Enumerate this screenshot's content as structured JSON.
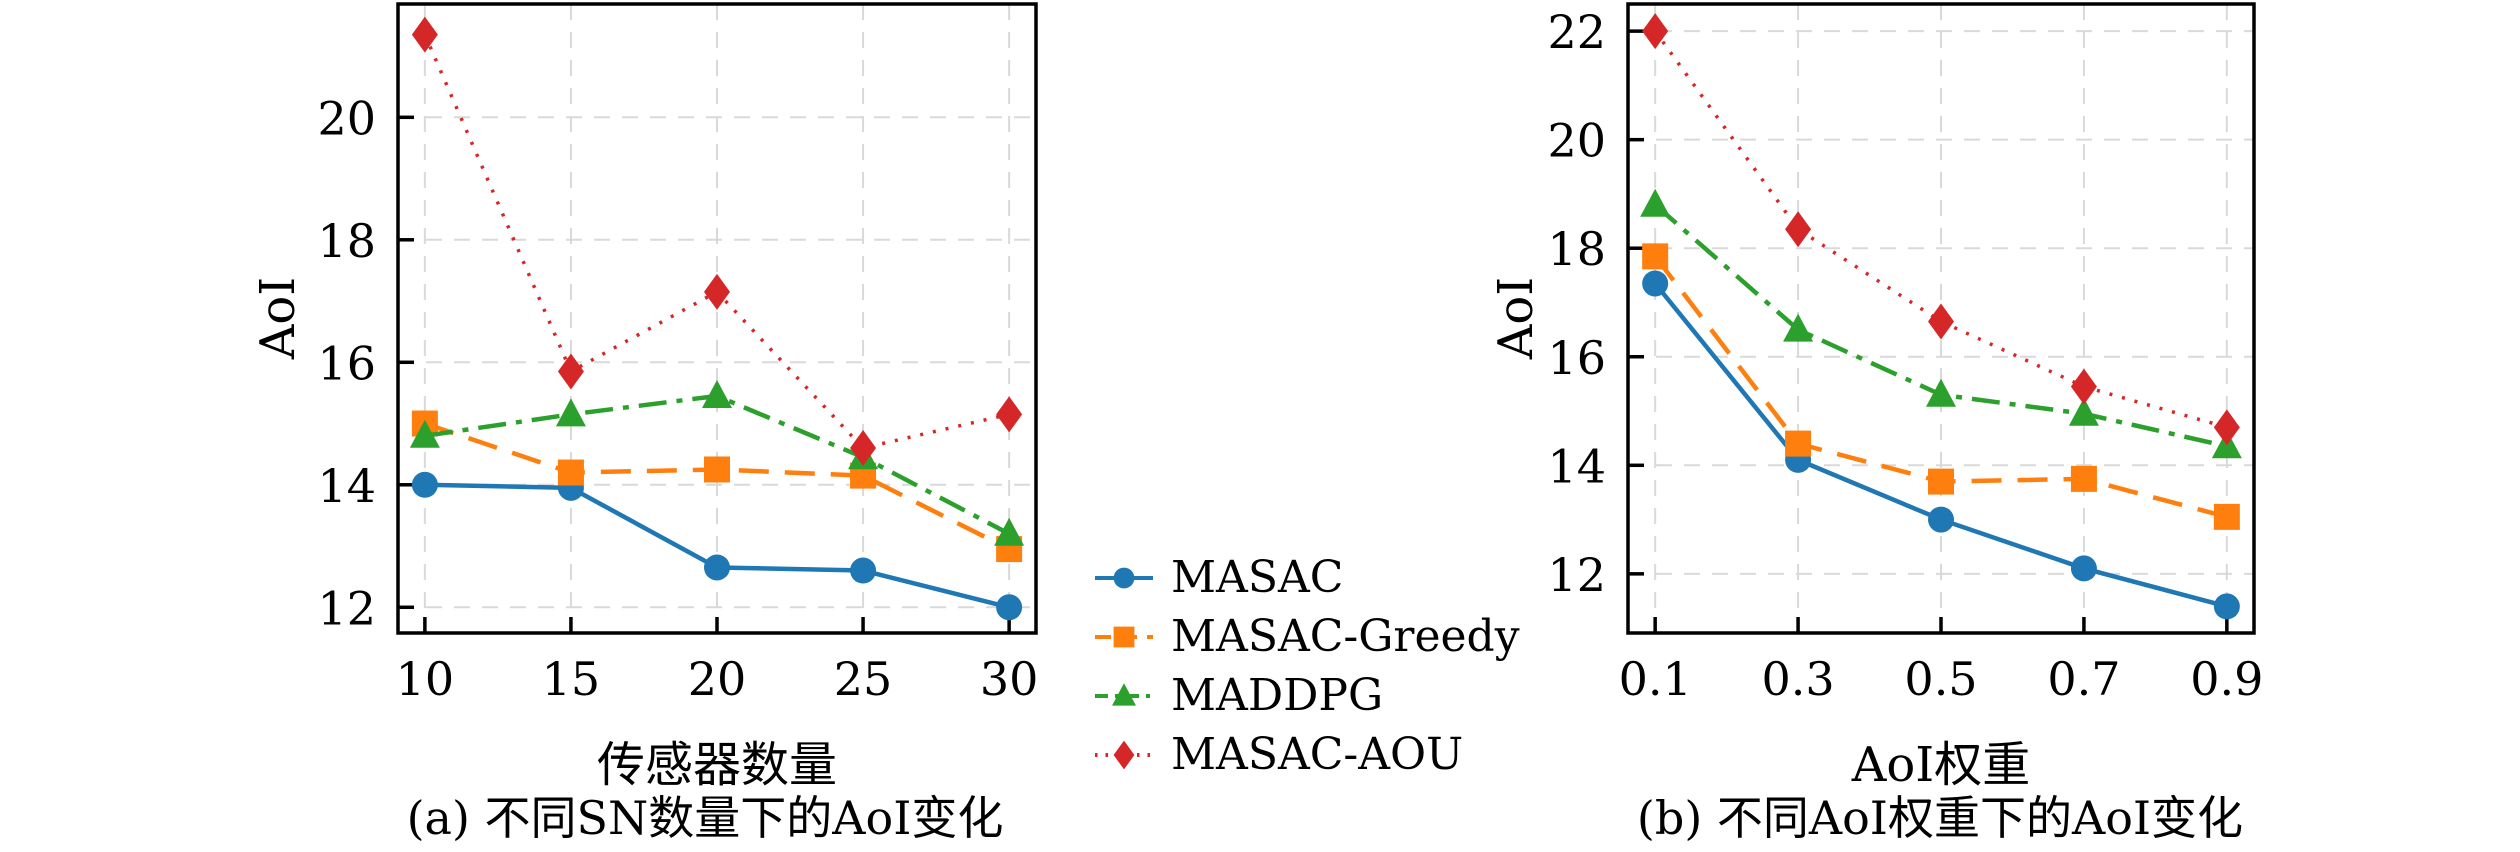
{
  "figure": {
    "background": "#ffffff",
    "frame_color": "#000000",
    "grid_color": "#d9d9d9"
  },
  "chart_data": [
    {
      "id": "a",
      "type": "line",
      "caption": "(a) 不同SN数量下的AoI变化",
      "xlabel": "传感器数量",
      "ylabel": "AoI",
      "x": [
        10,
        15,
        20,
        25,
        30
      ],
      "xticklabels": [
        "10",
        "15",
        "20",
        "25",
        "30"
      ],
      "yticks": [
        12,
        14,
        16,
        18,
        20
      ],
      "yticklabels": [
        "12",
        "14",
        "16",
        "18",
        "20"
      ],
      "xlim": [
        9.08,
        30.92
      ],
      "ylim": [
        11.58,
        21.85
      ],
      "grid": true,
      "legend_position": "right-of-plot",
      "series": [
        {
          "name": "MASAC",
          "color": "#1f77b4",
          "marker": "circle",
          "linestyle": "solid",
          "values": [
            14.0,
            13.95,
            12.65,
            12.6,
            12.0
          ]
        },
        {
          "name": "MASAC-Greedy",
          "color": "#ff7f0e",
          "marker": "square",
          "linestyle": "dashed",
          "values": [
            15.0,
            14.2,
            14.25,
            14.15,
            12.95
          ]
        },
        {
          "name": "MADDPG",
          "color": "#2ca02c",
          "marker": "triangle",
          "linestyle": "dashdot",
          "values": [
            14.8,
            15.15,
            15.45,
            14.45,
            13.2
          ]
        },
        {
          "name": "MASAC-AOU",
          "color": "#d62728",
          "marker": "diamond",
          "linestyle": "dotted",
          "values": [
            21.35,
            15.85,
            17.15,
            14.6,
            15.15
          ]
        }
      ]
    },
    {
      "id": "b",
      "type": "line",
      "caption": "(b) 不同AoI权重下的AoI变化",
      "xlabel": "AoI权重",
      "ylabel": "AoI",
      "x": [
        0.1,
        0.3,
        0.5,
        0.7,
        0.9
      ],
      "xticklabels": [
        "0.1",
        "0.3",
        "0.5",
        "0.7",
        "0.9"
      ],
      "yticks": [
        12,
        14,
        16,
        18,
        20,
        22
      ],
      "yticklabels": [
        "12",
        "14",
        "16",
        "18",
        "20",
        "22"
      ],
      "xlim": [
        0.062,
        0.938
      ],
      "ylim": [
        10.91,
        22.5
      ],
      "grid": true,
      "series": [
        {
          "name": "MASAC",
          "color": "#1f77b4",
          "marker": "circle",
          "linestyle": "solid",
          "values": [
            17.35,
            14.1,
            13.0,
            12.1,
            11.4
          ]
        },
        {
          "name": "MASAC-Greedy",
          "color": "#ff7f0e",
          "marker": "square",
          "linestyle": "dashed",
          "values": [
            17.85,
            14.4,
            13.7,
            13.75,
            13.05
          ]
        },
        {
          "name": "MADDPG",
          "color": "#2ca02c",
          "marker": "triangle",
          "linestyle": "dashdot",
          "values": [
            18.8,
            16.5,
            15.3,
            14.95,
            14.35
          ]
        },
        {
          "name": "MASAC-AOU",
          "color": "#d62728",
          "marker": "diamond",
          "linestyle": "dotted",
          "values": [
            22.0,
            18.35,
            16.65,
            15.45,
            14.7
          ]
        }
      ]
    }
  ]
}
